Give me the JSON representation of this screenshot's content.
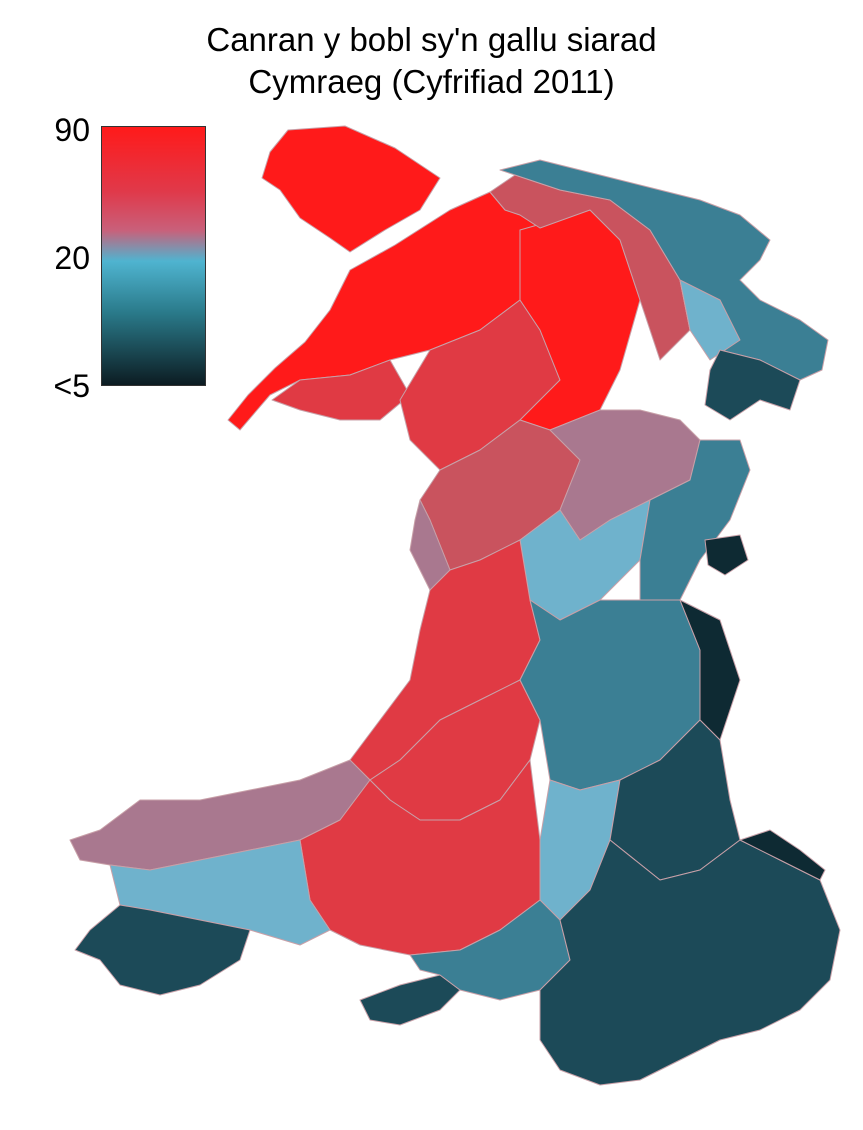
{
  "title": {
    "line1": "Canran y bobl sy'n gallu siarad",
    "line2": "Cymraeg (Cyfrifiad 2011)"
  },
  "legend": {
    "ticks": {
      "max": "90",
      "mid": "20",
      "min": "<5"
    },
    "gradient": [
      "#ff1a1a",
      "#e0394a",
      "#c9607a",
      "#4fb4d0",
      "#2a7a8a",
      "#0c1c22"
    ]
  },
  "colors": {
    "very_high": "#ff1a1a",
    "high": "#e03a44",
    "upper_mid": "#c9535e",
    "mid": "#a9788f",
    "low_mid": "#6fb2cc",
    "low": "#3b7f94",
    "very_low": "#1c4a58",
    "lowest": "#0e2a33",
    "boundary": "#d7a0a5"
  }
}
